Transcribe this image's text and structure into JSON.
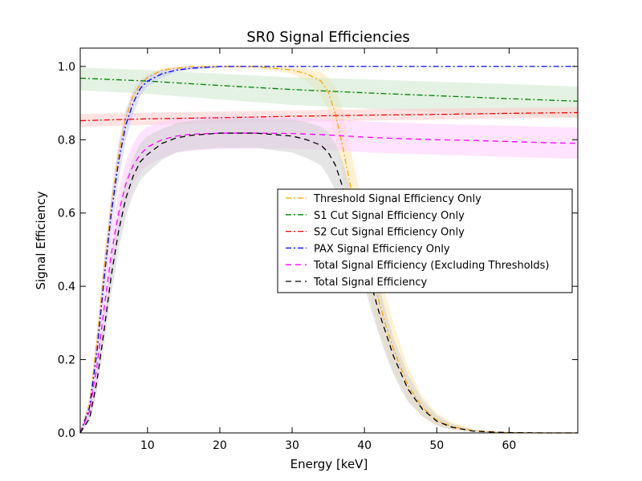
{
  "chart_data": {
    "type": "line",
    "title": "SR0 Signal Efficiencies",
    "xlabel": "Energy [keV]",
    "ylabel": "Signal Efficiency",
    "xlim": [
      0.7,
      69.5
    ],
    "ylim": [
      0,
      1.05
    ],
    "xticks": [
      10,
      20,
      30,
      40,
      50,
      60
    ],
    "yticks": [
      0.0,
      0.2,
      0.4,
      0.6,
      0.8,
      1.0
    ],
    "grid": false,
    "legend_position": "center-right",
    "series": [
      {
        "name": "Threshold Signal Efficiency Only",
        "color": "#ffa500",
        "band_color": "#ffe6b3",
        "dash": "dashdot",
        "x": [
          0.7,
          2,
          3,
          4,
          5,
          6,
          7,
          8,
          9,
          10,
          12,
          14,
          16,
          20,
          25,
          30,
          32,
          34,
          35,
          36,
          37,
          38,
          39,
          40,
          41,
          42,
          43,
          44,
          45,
          46,
          48,
          50,
          52,
          55,
          58,
          60,
          65,
          69.5
        ],
        "y": [
          0.0,
          0.08,
          0.25,
          0.45,
          0.62,
          0.76,
          0.86,
          0.92,
          0.95,
          0.97,
          0.99,
          0.995,
          1.0,
          1.0,
          1.0,
          0.99,
          0.98,
          0.96,
          0.93,
          0.87,
          0.78,
          0.68,
          0.6,
          0.52,
          0.44,
          0.36,
          0.29,
          0.23,
          0.18,
          0.13,
          0.07,
          0.035,
          0.018,
          0.006,
          0.002,
          0.001,
          0.0,
          0.0
        ],
        "lower": [
          0.0,
          0.06,
          0.22,
          0.42,
          0.6,
          0.74,
          0.84,
          0.9,
          0.94,
          0.96,
          0.985,
          0.99,
          0.995,
          0.995,
          0.995,
          0.98,
          0.96,
          0.92,
          0.88,
          0.8,
          0.7,
          0.6,
          0.51,
          0.43,
          0.35,
          0.28,
          0.22,
          0.17,
          0.13,
          0.09,
          0.045,
          0.02,
          0.01,
          0.003,
          0.001,
          0.0,
          0.0,
          0.0
        ],
        "upper": [
          0.0,
          0.1,
          0.28,
          0.48,
          0.65,
          0.78,
          0.88,
          0.94,
          0.965,
          0.98,
          0.995,
          1.0,
          1.0,
          1.0,
          1.0,
          1.0,
          0.995,
          0.985,
          0.97,
          0.94,
          0.88,
          0.78,
          0.69,
          0.61,
          0.53,
          0.45,
          0.37,
          0.3,
          0.24,
          0.18,
          0.1,
          0.055,
          0.03,
          0.011,
          0.004,
          0.002,
          0.0,
          0.0
        ]
      },
      {
        "name": "S1 Cut Signal Efficiency Only",
        "color": "#008000",
        "band_color": "#cce8cc",
        "dash": "dashdot",
        "x": [
          0.7,
          10,
          20,
          30,
          40,
          50,
          60,
          69.5
        ],
        "y": [
          0.968,
          0.96,
          0.948,
          0.937,
          0.928,
          0.92,
          0.912,
          0.905
        ],
        "lower": [
          0.935,
          0.925,
          0.91,
          0.895,
          0.885,
          0.875,
          0.867,
          0.86
        ],
        "upper": [
          0.997,
          0.99,
          0.98,
          0.97,
          0.965,
          0.958,
          0.952,
          0.945
        ]
      },
      {
        "name": "S2 Cut Signal Efficiency Only",
        "color": "#ff0000",
        "band_color": "#ffcccc",
        "dash": "dashdot",
        "x": [
          0.7,
          10,
          20,
          30,
          40,
          50,
          60,
          69.5
        ],
        "y": [
          0.852,
          0.857,
          0.86,
          0.864,
          0.867,
          0.869,
          0.872,
          0.874
        ],
        "lower": [
          0.835,
          0.84,
          0.845,
          0.848,
          0.852,
          0.855,
          0.858,
          0.86
        ],
        "upper": [
          0.87,
          0.874,
          0.877,
          0.88,
          0.883,
          0.885,
          0.887,
          0.889
        ]
      },
      {
        "name": "PAX Signal Efficiency Only",
        "color": "#0000ff",
        "band_color": "#c8c8ff",
        "dash": "dashdot",
        "x": [
          0.7,
          2,
          3,
          4,
          5,
          6,
          7,
          8,
          9,
          10,
          12,
          14,
          16,
          20,
          25,
          30,
          40,
          50,
          60,
          69.5
        ],
        "y": [
          0.0,
          0.07,
          0.22,
          0.42,
          0.6,
          0.74,
          0.84,
          0.9,
          0.94,
          0.96,
          0.98,
          0.99,
          0.995,
          1.0,
          1.0,
          1.0,
          1.0,
          1.0,
          1.0,
          1.0
        ],
        "lower": [
          0.0,
          0.05,
          0.18,
          0.37,
          0.55,
          0.69,
          0.8,
          0.87,
          0.92,
          0.945,
          0.97,
          0.985,
          0.99,
          0.997,
          1.0,
          1.0,
          1.0,
          1.0,
          1.0,
          1.0
        ],
        "upper": [
          0.0,
          0.09,
          0.26,
          0.47,
          0.65,
          0.79,
          0.88,
          0.93,
          0.96,
          0.975,
          0.99,
          0.997,
          1.0,
          1.0,
          1.0,
          1.0,
          1.0,
          1.0,
          1.0,
          1.0
        ]
      },
      {
        "name": "Total Signal Efficiency (Excluding Thresholds)",
        "color": "#ff00ff",
        "band_color": "#ffccff",
        "dash": "dashed",
        "x": [
          0.7,
          2,
          3,
          4,
          5,
          6,
          7,
          8,
          9,
          10,
          12,
          14,
          16,
          20,
          25,
          30,
          35,
          40,
          45,
          50,
          55,
          60,
          65,
          69.5
        ],
        "y": [
          0.0,
          0.06,
          0.18,
          0.34,
          0.49,
          0.6,
          0.68,
          0.73,
          0.76,
          0.78,
          0.8,
          0.81,
          0.815,
          0.818,
          0.818,
          0.817,
          0.813,
          0.807,
          0.803,
          0.8,
          0.798,
          0.795,
          0.792,
          0.79
        ],
        "lower": [
          0.0,
          0.04,
          0.14,
          0.29,
          0.43,
          0.54,
          0.62,
          0.68,
          0.71,
          0.73,
          0.75,
          0.765,
          0.77,
          0.775,
          0.776,
          0.775,
          0.772,
          0.766,
          0.762,
          0.759,
          0.756,
          0.753,
          0.75,
          0.748
        ],
        "upper": [
          0.0,
          0.08,
          0.22,
          0.39,
          0.55,
          0.66,
          0.74,
          0.79,
          0.82,
          0.835,
          0.85,
          0.858,
          0.862,
          0.864,
          0.863,
          0.86,
          0.856,
          0.85,
          0.846,
          0.843,
          0.84,
          0.838,
          0.835,
          0.833
        ]
      },
      {
        "name": "Total Signal Efficiency",
        "color": "#000000",
        "band_color": "#d0d0d0",
        "dash": "dashed",
        "x": [
          0.7,
          2,
          3,
          4,
          5,
          6,
          7,
          8,
          9,
          10,
          12,
          14,
          16,
          20,
          25,
          30,
          32,
          34,
          35,
          36,
          37,
          38,
          39,
          40,
          41,
          42,
          43,
          44,
          45,
          46,
          48,
          50,
          52,
          55,
          58,
          60,
          65,
          69.5
        ],
        "y": [
          0.0,
          0.04,
          0.14,
          0.28,
          0.43,
          0.55,
          0.64,
          0.7,
          0.74,
          0.76,
          0.79,
          0.805,
          0.812,
          0.818,
          0.818,
          0.81,
          0.8,
          0.785,
          0.765,
          0.73,
          0.67,
          0.6,
          0.54,
          0.47,
          0.4,
          0.33,
          0.27,
          0.21,
          0.165,
          0.12,
          0.065,
          0.032,
          0.016,
          0.005,
          0.002,
          0.001,
          0.0,
          0.0
        ],
        "lower": [
          0.0,
          0.03,
          0.11,
          0.24,
          0.38,
          0.5,
          0.59,
          0.65,
          0.69,
          0.71,
          0.745,
          0.765,
          0.772,
          0.778,
          0.778,
          0.765,
          0.75,
          0.73,
          0.7,
          0.66,
          0.6,
          0.53,
          0.46,
          0.4,
          0.33,
          0.27,
          0.21,
          0.16,
          0.12,
          0.085,
          0.045,
          0.02,
          0.009,
          0.003,
          0.001,
          0.0,
          0.0,
          0.0
        ],
        "upper": [
          0.0,
          0.05,
          0.17,
          0.32,
          0.48,
          0.6,
          0.69,
          0.75,
          0.79,
          0.81,
          0.83,
          0.845,
          0.852,
          0.858,
          0.858,
          0.855,
          0.848,
          0.835,
          0.82,
          0.79,
          0.74,
          0.67,
          0.61,
          0.54,
          0.47,
          0.4,
          0.33,
          0.26,
          0.21,
          0.16,
          0.09,
          0.048,
          0.025,
          0.009,
          0.003,
          0.002,
          0.0,
          0.0
        ]
      }
    ]
  }
}
